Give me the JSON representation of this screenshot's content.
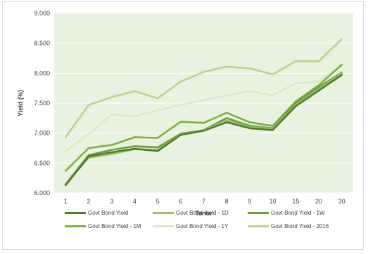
{
  "chart_data": {
    "type": "line",
    "title": "",
    "xlabel": "Tenor",
    "ylabel": "Yield (%)",
    "categories": [
      "1",
      "2",
      "3",
      "4",
      "5",
      "6",
      "7",
      "8",
      "9",
      "10",
      "15",
      "20",
      "30"
    ],
    "ylim": [
      6.0,
      9.0
    ],
    "yticks": [
      "6.000",
      "6.500",
      "7.000",
      "7.500",
      "8.000",
      "8.500",
      "9.000"
    ],
    "grid": "horizontal",
    "plot_background": "#e8f2e0",
    "legend_position": "bottom",
    "series": [
      {
        "name": "Govt Bond Yield",
        "color": "#4e7d30",
        "values": [
          6.13,
          6.61,
          6.68,
          6.74,
          6.7,
          6.97,
          7.04,
          7.18,
          7.08,
          7.05,
          7.45,
          7.71,
          7.97
        ]
      },
      {
        "name": "Govt Bond Yield - 1D",
        "color": "#92c36a",
        "values": [
          6.15,
          6.59,
          6.65,
          6.73,
          6.72,
          6.98,
          7.05,
          7.21,
          7.1,
          7.07,
          7.47,
          7.74,
          8.0
        ]
      },
      {
        "name": "Govt Bond Yield - 1W",
        "color": "#6e9a3f",
        "values": [
          6.15,
          6.63,
          6.72,
          6.78,
          6.76,
          6.99,
          7.05,
          7.25,
          7.12,
          7.08,
          7.5,
          7.77,
          8.01
        ]
      },
      {
        "name": "Govt Bond Yield - 1M",
        "color": "#7db144",
        "values": [
          6.37,
          6.75,
          6.8,
          6.93,
          6.92,
          7.19,
          7.17,
          7.34,
          7.18,
          7.12,
          7.53,
          7.8,
          8.14
        ]
      },
      {
        "name": "Govt Bond Yield - 1Y",
        "color": "#d8e9c6",
        "values": [
          6.7,
          6.98,
          7.31,
          7.28,
          7.38,
          7.47,
          7.55,
          7.63,
          7.7,
          7.63,
          7.83,
          7.86,
          8.16
        ]
      },
      {
        "name": "Govt Bond Yield - 2016",
        "color": "#b7d68e",
        "values": [
          6.93,
          7.47,
          7.6,
          7.7,
          7.58,
          7.86,
          8.02,
          8.11,
          8.08,
          7.98,
          8.2,
          8.2,
          8.57
        ]
      }
    ]
  }
}
